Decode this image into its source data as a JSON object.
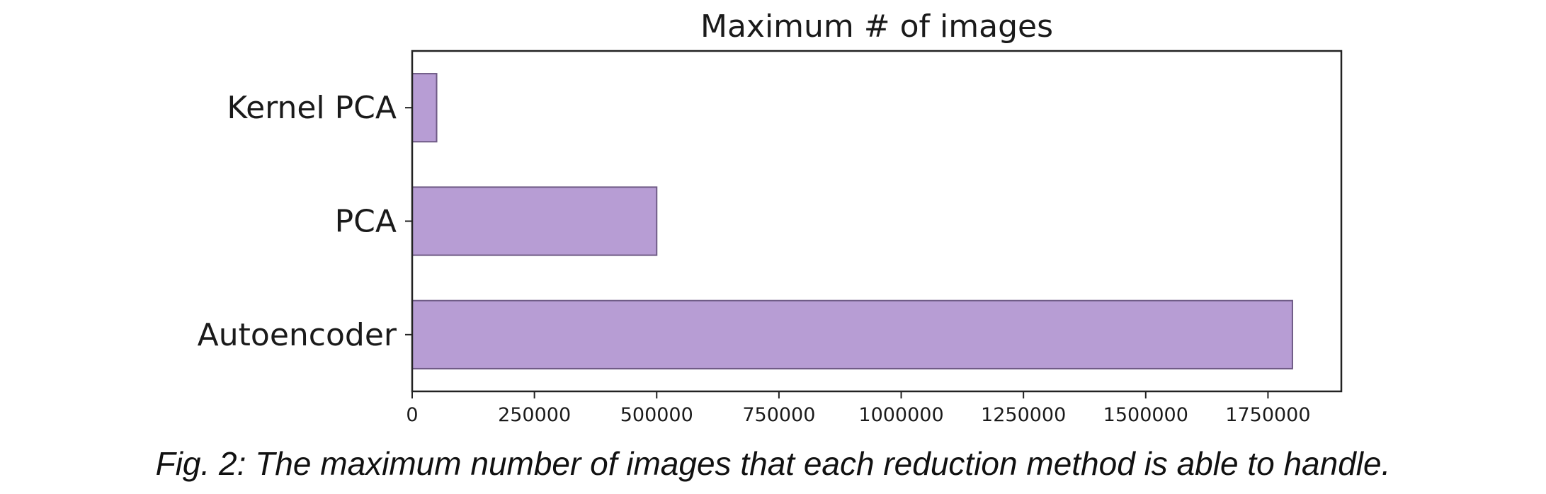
{
  "chart_data": {
    "type": "bar",
    "orientation": "horizontal",
    "title": "Maximum # of images",
    "categories": [
      "Kernel PCA",
      "PCA",
      "Autoencoder"
    ],
    "values": [
      50000,
      500000,
      1800000
    ],
    "xlim": [
      0,
      1900000
    ],
    "xticks": [
      0,
      250000,
      500000,
      750000,
      1000000,
      1250000,
      1500000,
      1750000
    ],
    "xtick_labels": [
      "0",
      "250000",
      "500000",
      "750000",
      "1000000",
      "1250000",
      "1500000",
      "1750000"
    ],
    "xlabel": "",
    "ylabel": "",
    "grid": false,
    "bar_color": "#b79dd4",
    "bar_edge_color": "#6e5a85"
  },
  "caption": "Fig. 2: The maximum number of images that each reduction method is able to handle."
}
